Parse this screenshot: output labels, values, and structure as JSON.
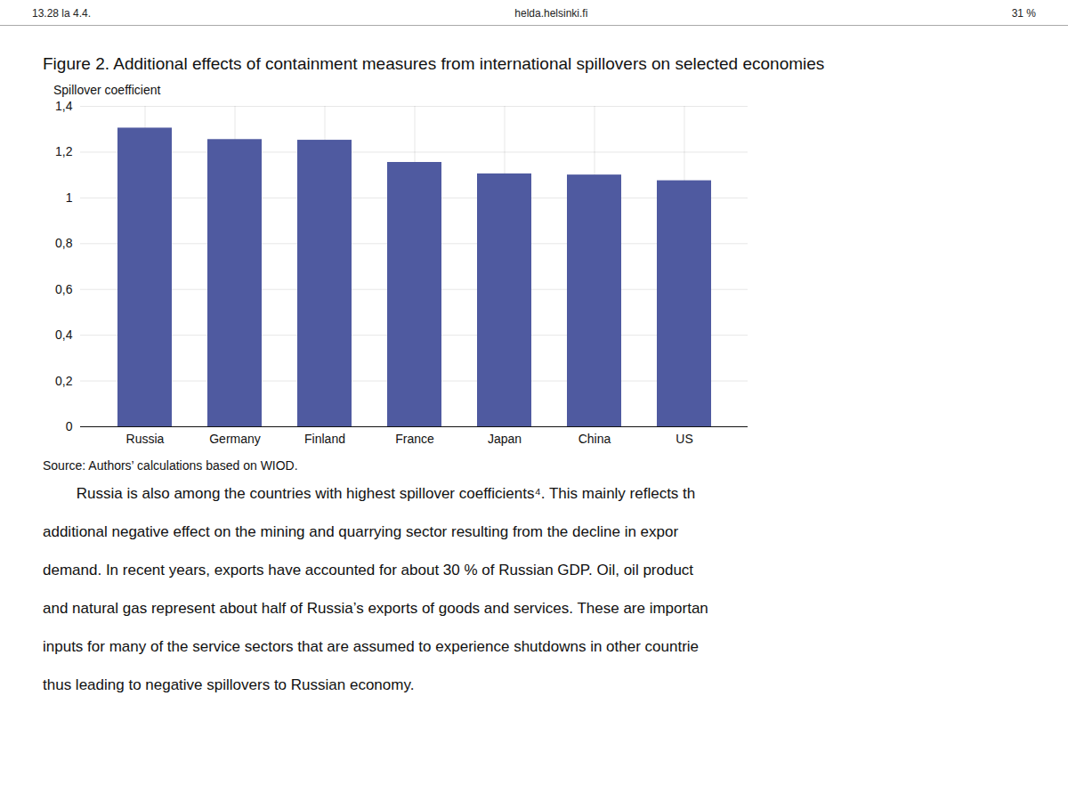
{
  "chart_data": {
    "type": "bar",
    "title": "Figure 2. Additional effects of containment measures from international spillovers on selected economies",
    "ylabel": "Spillover coefficient",
    "annotations": [
      "13.28  la 4.4.",
      "helda.helsinki.fi",
      "31 %",
      "Source: Authors’ calculations based on WIOD.",
      "        Russia is also among the countries with highest spillover coefficients⁴. This mainly reflects th",
      "additional negative effect on the mining and quarrying sector resulting from the decline in expor",
      "demand. In recent years, exports have accounted for about 30 % of Russian GDP. Oil, oil product",
      "and natural gas represent about half of Russia’s exports of goods and services. These are importan",
      "inputs for many of the service sectors that are assumed to experience shutdowns in other countrie",
      "thus leading to negative spillovers to Russian economy."
    ],
    "categories": [
      "Russia",
      "Germany",
      "Finland",
      "France",
      "Japan",
      "China",
      "US"
    ],
    "values": [
      1.305,
      1.255,
      1.252,
      1.155,
      1.105,
      1.1,
      1.075
    ],
    "color": "#4f5aa0",
    "ylim": [
      0,
      1.4
    ],
    "yticks": [
      0,
      {
        "value": 0.2,
        "label": "0,2"
      },
      {
        "value": 0.4,
        "label": "0,4"
      },
      {
        "value": 0.6,
        "label": "0,6"
      },
      {
        "value": 0.8,
        "label": "0,8"
      },
      1,
      {
        "value": 1.2,
        "label": "1,2"
      },
      {
        "value": 1.4,
        "label": "1,4"
      }
    ],
    "grid": true
  }
}
